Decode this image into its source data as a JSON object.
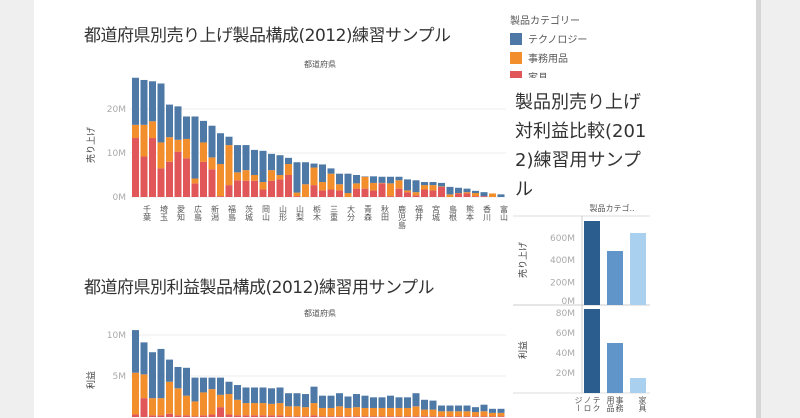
{
  "colors": {
    "technology": "#4e79a7",
    "office": "#f28e2b",
    "furniture": "#e15759",
    "right_tech": "#2c5d8f",
    "right_office": "#5f95c8",
    "right_furniture": "#a9d0ee"
  },
  "sales_dashboard": {
    "title": "都道府県別売り上げ製品構成(2012)練習サンプル",
    "profit_title": "都道府県別利益製品構成(2012)練習用サンプル",
    "right_title": "製品別売り上げ対利益比較(2012)練習用サンプル"
  },
  "legend": {
    "title": "製品カテゴリー",
    "items": [
      {
        "label": "テクノロジー",
        "color": "#4e79a7"
      },
      {
        "label": "事務用品",
        "color": "#f28e2b"
      },
      {
        "label": "家具",
        "color": "#e15759"
      }
    ]
  },
  "chart_data": [
    {
      "type": "bar",
      "stacked": true,
      "header": "都道府県",
      "ylabel": "売り上げ",
      "yticks": [
        "0M",
        "10M",
        "20M"
      ],
      "ylim": [
        0,
        28
      ],
      "categories": [
        "",
        "千葉",
        "",
        "埼玉",
        "",
        "愛知",
        "",
        "広島",
        "",
        "新潟",
        "",
        "福島",
        "",
        "茨城",
        "",
        "岡山",
        "",
        "山形",
        "",
        "山梨",
        "",
        "栃木",
        "",
        "三重",
        "",
        "大分",
        "",
        "青森",
        "",
        "秋田",
        "",
        "鹿児島",
        "",
        "福井",
        "",
        "宮城",
        "",
        "島根",
        "",
        "熊本",
        "",
        "香川",
        "",
        "富山"
      ],
      "series": [
        {
          "name": "家具",
          "values": [
            13.4,
            9.2,
            13.4,
            6.5,
            8.0,
            10.3,
            8.8,
            3.1,
            8.0,
            6.3,
            0.2,
            2.7,
            3.8,
            3.7,
            3.7,
            1.7,
            3.7,
            4.0,
            5.0,
            0.2,
            0,
            2.7,
            1.5,
            1.7,
            1.5,
            0,
            1.9,
            1.9,
            1.5,
            3.1,
            0.2,
            1.9,
            1.1,
            0.4,
            1.7,
            1.5,
            2.3,
            0,
            0.8,
            0.8,
            0.2,
            0.2,
            0,
            0
          ]
        },
        {
          "name": "事務用品",
          "values": [
            3.0,
            7.2,
            3.8,
            5.9,
            5.6,
            2.7,
            4.4,
            1.1,
            4.4,
            2.7,
            7.3,
            9.1,
            1.8,
            2.4,
            1.3,
            1.7,
            2.4,
            1.0,
            2.5,
            0.8,
            2.9,
            4.0,
            1.9,
            3.6,
            1.4,
            0.9,
            1.2,
            2.7,
            1.7,
            0.1,
            2.9,
            1.9,
            0.4,
            0.7,
            1.0,
            1.2,
            0.1,
            0.6,
            0.1,
            0.3,
            0.7,
            0,
            0.8,
            0
          ]
        },
        {
          "name": "テクノロジー",
          "values": [
            10.7,
            10.2,
            9.1,
            13.4,
            7.4,
            7.6,
            5.1,
            14.1,
            4.9,
            7.2,
            7.0,
            1.9,
            6.2,
            5.7,
            5.7,
            7.1,
            3.7,
            4.5,
            1.4,
            6.9,
            5.0,
            0.9,
            4.0,
            1.2,
            2.4,
            4.4,
            1.9,
            0.1,
            1.5,
            1.4,
            1.5,
            0.8,
            2.5,
            2.7,
            0.7,
            0.7,
            0.8,
            1.7,
            1.2,
            0.8,
            0.5,
            0.9,
            0,
            0.6
          ]
        }
      ]
    },
    {
      "type": "bar",
      "stacked": true,
      "header": "都道府県",
      "ylabel": "利益",
      "yticks": [
        "5M",
        "10M"
      ],
      "ylim": [
        0,
        11
      ],
      "series": [
        {
          "name": "家具",
          "values": [
            0.3,
            2.3,
            0.2,
            0.2,
            0.4,
            0.2,
            0.2,
            0.1,
            0.2,
            0.3,
            1.2,
            0.3,
            0.2,
            0.2,
            0.2,
            0.2,
            0.2,
            0.2,
            0.1,
            0.1,
            0.1,
            0.2,
            0.1,
            0.1,
            0.1,
            0.1,
            0.1,
            0.1,
            0.1,
            0.1,
            0.1,
            0.1,
            0.1,
            0.1,
            0.1,
            0.1,
            0.1,
            0.1,
            0.1,
            0.1,
            0.1,
            0.1,
            0.1,
            0.1
          ]
        },
        {
          "name": "事務用品",
          "values": [
            5.1,
            2.9,
            2.1,
            2.1,
            3.9,
            3.3,
            2.4,
            1.8,
            2.8,
            3.1,
            1.5,
            2.5,
            1.9,
            1.5,
            1.5,
            1.5,
            1.4,
            1.5,
            1.2,
            1.2,
            1.1,
            1.5,
            1.0,
            1.0,
            1.2,
            1.0,
            1.1,
            1.0,
            1.0,
            1.0,
            1.0,
            1.0,
            1.0,
            1.2,
            0.8,
            0.8,
            0.6,
            0.6,
            0.6,
            0.6,
            0.5,
            0.6,
            0.4,
            0.4
          ]
        },
        {
          "name": "テクノロジー",
          "values": [
            5.2,
            3.9,
            5.6,
            6.0,
            2.7,
            2.6,
            3.4,
            2.9,
            1.8,
            1.4,
            2.1,
            1.5,
            1.8,
            1.9,
            1.9,
            1.9,
            1.9,
            1.9,
            1.6,
            1.6,
            1.6,
            2.0,
            1.5,
            1.5,
            1.6,
            1.4,
            1.6,
            1.5,
            1.3,
            1.3,
            1.5,
            1.3,
            1.3,
            1.6,
            1.2,
            1.1,
            0.7,
            0.7,
            0.7,
            0.7,
            0.6,
            0.8,
            0.5,
            0.5
          ]
        }
      ]
    },
    {
      "type": "bar",
      "header": "製品カテゴ..",
      "categories": [
        "テクノロジー",
        "事務用品",
        "家具"
      ],
      "panes": [
        {
          "ylabel": "売り上げ",
          "yticks": [
            "0M",
            "200M",
            "400M",
            "600M"
          ],
          "values": [
            750,
            482,
            643
          ]
        },
        {
          "ylabel": "利益",
          "yticks": [
            "20M",
            "40M",
            "60M",
            "80M"
          ],
          "values": [
            84,
            50,
            15
          ]
        }
      ]
    }
  ]
}
